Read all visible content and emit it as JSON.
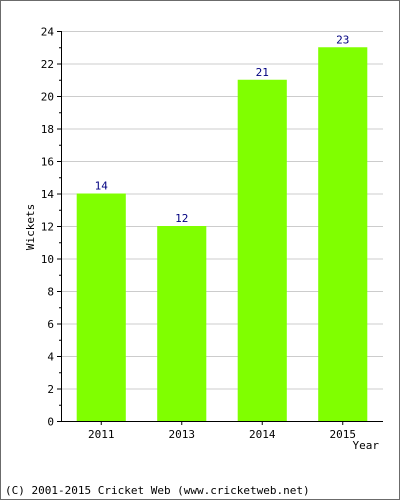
{
  "chart_data": {
    "type": "bar",
    "title": "",
    "xlabel": "Year",
    "ylabel": "Wickets",
    "categories": [
      "2011",
      "2013",
      "2014",
      "2015"
    ],
    "values": [
      14,
      12,
      21,
      23
    ],
    "value_labels": [
      "14",
      "12",
      "21",
      "23"
    ],
    "ylim": [
      0,
      24
    ],
    "yticks": [
      "0",
      "2",
      "4",
      "6",
      "8",
      "10",
      "12",
      "14",
      "16",
      "18",
      "20",
      "22",
      "24"
    ],
    "grid": true,
    "legend": "none",
    "colors": {
      "bar": "#80ff00",
      "value_label": "#000080",
      "grid": "#cccccc",
      "axis": "#000000"
    }
  },
  "footer": {
    "copyright": "(C) 2001-2015 Cricket Web (www.cricketweb.net)"
  }
}
